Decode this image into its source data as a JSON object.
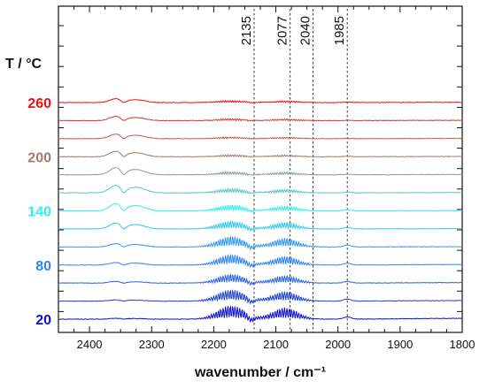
{
  "chart_data": {
    "type": "line",
    "title": "",
    "xlabel": "wavenumber / cm⁻¹",
    "ylabel": "T / °C",
    "xlim": [
      2450,
      1800
    ],
    "x_reversed": true,
    "x_ticks": [
      "2400",
      "2300",
      "2200",
      "2100",
      "2000",
      "1900",
      "1800"
    ],
    "y_axis_ticks": "unlabeled",
    "grid": false,
    "legend": "none",
    "reference_lines": [
      {
        "x": 2135,
        "label": "2135"
      },
      {
        "x": 2077,
        "label": "2077"
      },
      {
        "x": 2040,
        "label": "2040"
      },
      {
        "x": 1985,
        "label": "1985"
      }
    ],
    "temperature_labels": [
      {
        "text": "260",
        "trace_index": 0,
        "color": "#ee1111"
      },
      {
        "text": "200",
        "trace_index": 3,
        "color": "#a57a70"
      },
      {
        "text": "140",
        "trace_index": 6,
        "color": "#33eeee"
      },
      {
        "text": "80",
        "trace_index": 9,
        "color": "#3385ee"
      },
      {
        "text": "20",
        "trace_index": 12,
        "color": "#1111cc"
      }
    ],
    "series": [
      {
        "color": "#ee1111",
        "co2": 0.45,
        "co": 0.2,
        "lowtail": 0.05
      },
      {
        "color": "#d83a2a",
        "co2": 0.5,
        "co": 0.18,
        "lowtail": 0.05
      },
      {
        "color": "#c85a48",
        "co2": 0.55,
        "co": 0.16,
        "lowtail": 0.05
      },
      {
        "color": "#a57a70",
        "co2": 0.65,
        "co": 0.18,
        "lowtail": 0.05
      },
      {
        "color": "#8a9e98",
        "co2": 0.85,
        "co": 0.3,
        "lowtail": 0.05
      },
      {
        "color": "#56c8c0",
        "co2": 0.9,
        "co": 0.4,
        "lowtail": 0.05
      },
      {
        "color": "#33eeee",
        "co2": 0.85,
        "co": 0.55,
        "lowtail": 0.05
      },
      {
        "color": "#33c8ee",
        "co2": 0.7,
        "co": 0.75,
        "lowtail": 0.05
      },
      {
        "color": "#3399ee",
        "co2": 0.4,
        "co": 1.0,
        "lowtail": 0.05
      },
      {
        "color": "#3385ee",
        "co2": 0.3,
        "co": 1.0,
        "lowtail": 0.08
      },
      {
        "color": "#2a66dd",
        "co2": 0.2,
        "co": 0.85,
        "lowtail": 0.08
      },
      {
        "color": "#1f44cc",
        "co2": 0.15,
        "co": 1.1,
        "lowtail": 0.1
      },
      {
        "color": "#1111cc",
        "co2": 0.1,
        "co": 1.3,
        "lowtail": 0.15
      }
    ]
  }
}
